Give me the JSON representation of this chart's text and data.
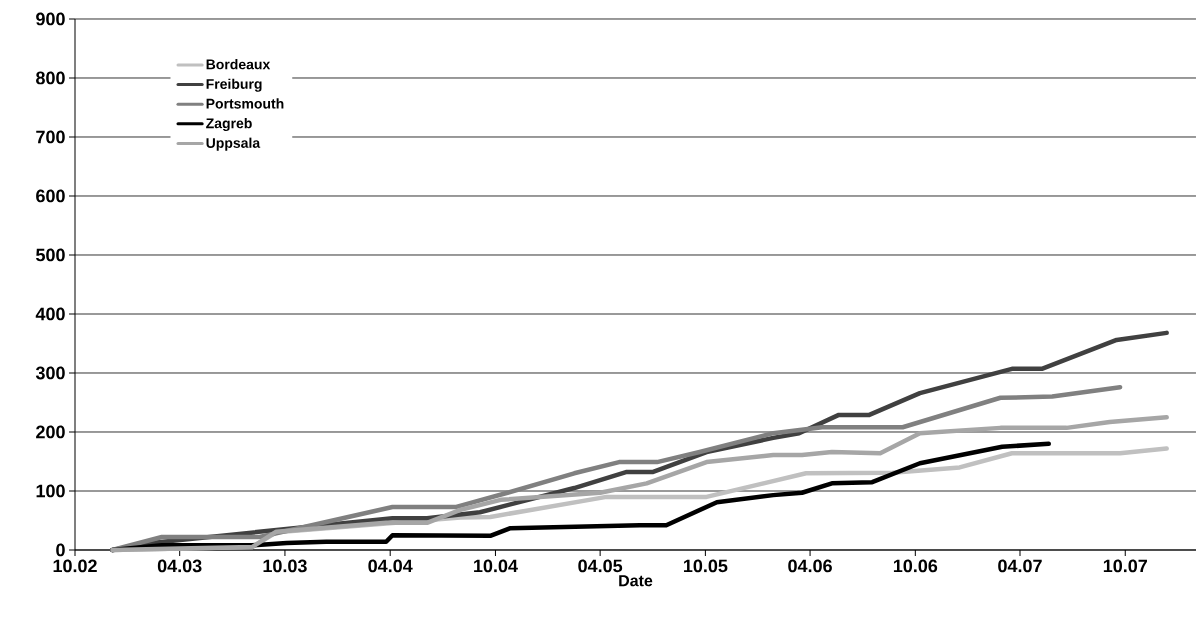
{
  "chart_data": {
    "type": "line",
    "xlabel": "Date",
    "xlim": [
      "2002-10",
      "2008-02"
    ],
    "xticks": [
      {
        "value": "2002-10",
        "label": "10.02"
      },
      {
        "value": "2003-04",
        "label": "04.03"
      },
      {
        "value": "2003-10",
        "label": "10.03"
      },
      {
        "value": "2004-04",
        "label": "04.04"
      },
      {
        "value": "2004-10",
        "label": "10.04"
      },
      {
        "value": "2005-04",
        "label": "04.05"
      },
      {
        "value": "2005-10",
        "label": "10.05"
      },
      {
        "value": "2006-04",
        "label": "04.06"
      },
      {
        "value": "2006-10",
        "label": "10.06"
      },
      {
        "value": "2007-04",
        "label": "04.07"
      },
      {
        "value": "2007-10",
        "label": "10.07"
      }
    ],
    "ylim": [
      0,
      900
    ],
    "yticks": [
      0,
      100,
      200,
      300,
      400,
      500,
      600,
      700,
      800,
      900
    ],
    "grid": "y",
    "legend": "top left",
    "marker": "none",
    "line_style": "solid",
    "series": [
      {
        "name": "Bordeaux",
        "color": "#c0c0c0",
        "x": [
          "2002-12-05",
          "2003-08-05",
          "2003-09-16",
          "2004-03-25",
          "2004-08-01",
          "2004-09-22",
          "2005-04-12",
          "2005-10-03",
          "2006-03-25",
          "2006-08-22",
          "2006-12-17",
          "2007-03-18",
          "2007-09-22",
          "2007-12-12"
        ],
        "values": [
          0,
          5,
          30,
          45,
          55,
          56,
          90,
          90,
          130,
          131,
          140,
          164,
          164,
          172
        ]
      },
      {
        "name": "Freiburg",
        "color": "#404040",
        "x": [
          "2002-12-05",
          "2003-02-10",
          "2004-04-05",
          "2004-06-04",
          "2004-09-04",
          "2005-02-15",
          "2005-05-16",
          "2005-07-01",
          "2005-10-03",
          "2006-01-27",
          "2006-03-13",
          "2006-05-21",
          "2006-07-13",
          "2006-10-09",
          "2007-03-18",
          "2007-05-09",
          "2007-09-16",
          "2007-12-12"
        ],
        "values": [
          0,
          12,
          54,
          54,
          64,
          105,
          132,
          132,
          166,
          190,
          198,
          229,
          229,
          266,
          307,
          307,
          356,
          368
        ]
      },
      {
        "name": "Portsmouth",
        "color": "#808080",
        "x": [
          "2002-12-05",
          "2003-03-01",
          "2003-08-18",
          "2004-04-05",
          "2004-07-25",
          "2004-10-22",
          "2005-02-15",
          "2005-05-04",
          "2005-07-09",
          "2005-09-21",
          "2006-01-27",
          "2006-04-22",
          "2006-09-09",
          "2007-02-26",
          "2007-05-27",
          "2007-09-22"
        ],
        "values": [
          0,
          22,
          22,
          73,
          73,
          97,
          130,
          149,
          149,
          166,
          198,
          208,
          208,
          258,
          260,
          276
        ]
      },
      {
        "name": "Zagreb",
        "color": "#000000",
        "x": [
          "2002-12-05",
          "2003-03-01",
          "2003-08-05",
          "2003-10-04",
          "2003-12-12",
          "2004-03-25",
          "2004-04-05",
          "2004-09-22",
          "2004-10-27",
          "2005-06-09",
          "2005-07-25",
          "2005-10-21",
          "2006-01-27",
          "2006-03-18",
          "2006-05-09",
          "2006-07-18",
          "2006-10-09",
          "2007-03-01",
          "2007-05-21"
        ],
        "values": [
          0,
          8,
          8,
          12,
          14,
          14,
          25,
          24,
          37,
          42,
          42,
          81,
          93,
          97,
          113,
          115,
          147,
          175,
          180
        ]
      },
      {
        "name": "Uppsala",
        "color": "#a6a6a6",
        "x": [
          "2002-12-05",
          "2003-04-21",
          "2003-08-05",
          "2003-09-16",
          "2004-03-25",
          "2004-06-04",
          "2004-08-01",
          "2004-10-10",
          "2005-04-01",
          "2005-06-21",
          "2005-10-03",
          "2006-01-27",
          "2006-03-18",
          "2006-05-09",
          "2006-08-01",
          "2006-10-09",
          "2007-02-26",
          "2007-06-21",
          "2007-09-04",
          "2007-12-12"
        ],
        "values": [
          0,
          3,
          5,
          31,
          46,
          46,
          68,
          85,
          97,
          113,
          149,
          161,
          161,
          166,
          164,
          198,
          207,
          207,
          217,
          225
        ]
      }
    ]
  }
}
